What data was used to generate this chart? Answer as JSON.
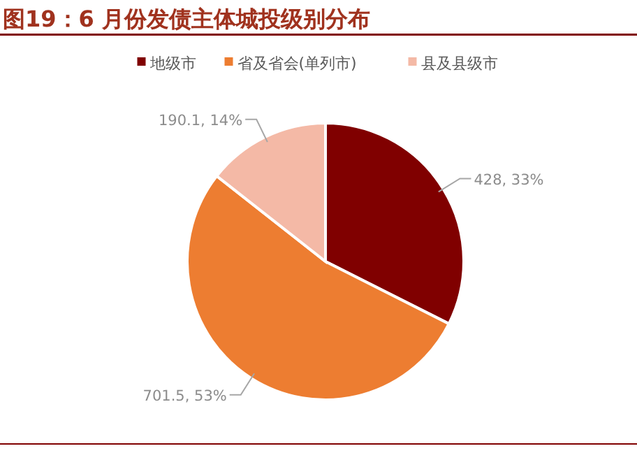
{
  "chart_data": {
    "type": "pie",
    "title": "图19：6 月份发债主体城投级别分布",
    "categories": [
      "地级市",
      "省及省会(单列市)",
      "县及县级市"
    ],
    "values": [
      428,
      701.5,
      190.1
    ],
    "colors": [
      "#800000",
      "#ed7d31",
      "#f4b9a6"
    ],
    "value_labels": [
      "428, 33%",
      "701.5, 53%",
      "190.1, 14%"
    ],
    "legend": "top"
  }
}
